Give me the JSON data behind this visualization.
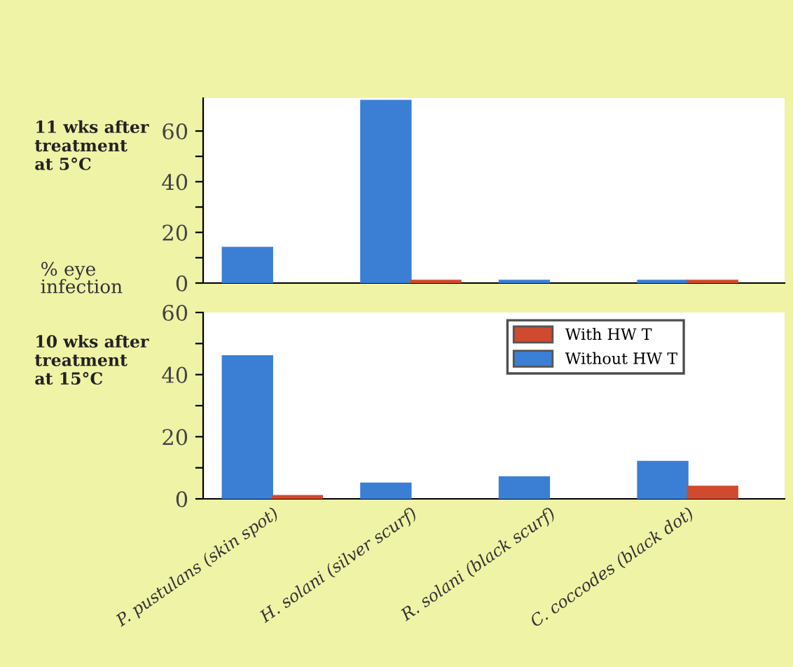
{
  "chart_data": [
    {
      "type": "bar",
      "title": "11 wks after\ntreatment\nat 5°C",
      "ylabel": "% eye\ninfection",
      "categories": [
        null,
        null,
        null,
        null
      ],
      "series": [
        {
          "color": "#3b7fd4",
          "values": [
            14,
            72,
            1,
            1
          ]
        },
        {
          "color": "#cf4a2e",
          "values": [
            null,
            1,
            null,
            1
          ]
        }
      ],
      "ylim": [
        0,
        73
      ],
      "yticks": [
        0,
        {
          "value": 10,
          "label": null
        },
        20,
        {
          "value": 30,
          "label": null
        },
        40,
        {
          "value": 50,
          "label": null
        },
        60
      ],
      "tick_labels": "y",
      "grid": false,
      "legend": false
    },
    {
      "type": "bar",
      "title": "10 wks after\ntreatment\nat 15°C",
      "categories": [
        "P. pustulans (skin spot)",
        "H. solani (silver scurf)",
        "R. solani (black scurf)",
        "C. coccodes (black dot)"
      ],
      "series": [
        {
          "name": "Without HW T",
          "color": "#3b7fd4",
          "values": [
            46,
            5,
            7,
            12
          ]
        },
        {
          "name": "With HW T",
          "color": "#cf4a2e",
          "values": [
            1,
            null,
            null,
            4
          ]
        }
      ],
      "ylim": [
        0,
        60
      ],
      "yticks": [
        0,
        {
          "value": 10,
          "label": null
        },
        20,
        {
          "value": 30,
          "label": null
        },
        40,
        {
          "value": 50,
          "label": null
        },
        60
      ],
      "grid": false,
      "legend": "top right"
    }
  ]
}
